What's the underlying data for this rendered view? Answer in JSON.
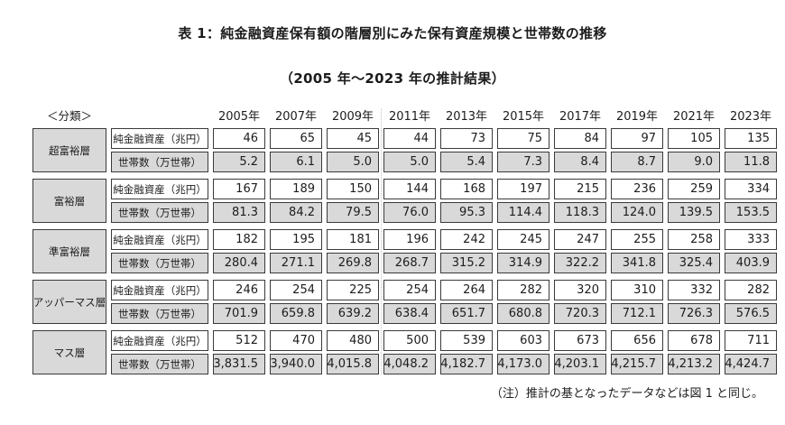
{
  "title": "表 1：純金融資産保有額の階層別にみた保有資産規模と世帯数の推移",
  "subtitle": "（2005 年～2023 年の推計結果）",
  "note": "（注）推計の基となったデータなどは図 1 と同じ。",
  "colors": {
    "cell_gray": "#d9d9d9",
    "border": "#3a3a3a",
    "background": "#ffffff"
  },
  "table": {
    "classification_label": "＜分類＞",
    "years": [
      "2005年",
      "2007年",
      "2009年",
      "2011年",
      "2013年",
      "2015年",
      "2017年",
      "2019年",
      "2021年",
      "2023年"
    ],
    "row_labels": {
      "assets": "純金融資産（兆円）",
      "households": "世帯数（万世帯）"
    },
    "tiers": [
      {
        "name": "超富裕層",
        "assets": [
          "46",
          "65",
          "45",
          "44",
          "73",
          "75",
          "84",
          "97",
          "105",
          "135"
        ],
        "households": [
          "5.2",
          "6.1",
          "5.0",
          "5.0",
          "5.4",
          "7.3",
          "8.4",
          "8.7",
          "9.0",
          "11.8"
        ]
      },
      {
        "name": "富裕層",
        "assets": [
          "167",
          "189",
          "150",
          "144",
          "168",
          "197",
          "215",
          "236",
          "259",
          "334"
        ],
        "households": [
          "81.3",
          "84.2",
          "79.5",
          "76.0",
          "95.3",
          "114.4",
          "118.3",
          "124.0",
          "139.5",
          "153.5"
        ]
      },
      {
        "name": "準富裕層",
        "assets": [
          "182",
          "195",
          "181",
          "196",
          "242",
          "245",
          "247",
          "255",
          "258",
          "333"
        ],
        "households": [
          "280.4",
          "271.1",
          "269.8",
          "268.7",
          "315.2",
          "314.9",
          "322.2",
          "341.8",
          "325.4",
          "403.9"
        ]
      },
      {
        "name": "アッパーマス層",
        "assets": [
          "246",
          "254",
          "225",
          "254",
          "264",
          "282",
          "320",
          "310",
          "332",
          "282"
        ],
        "households": [
          "701.9",
          "659.8",
          "639.2",
          "638.4",
          "651.7",
          "680.8",
          "720.3",
          "712.1",
          "726.3",
          "576.5"
        ]
      },
      {
        "name": "マス層",
        "assets": [
          "512",
          "470",
          "480",
          "500",
          "539",
          "603",
          "673",
          "656",
          "678",
          "711"
        ],
        "households": [
          "3,831.5",
          "3,940.0",
          "4,015.8",
          "4,048.2",
          "4,182.7",
          "4,173.0",
          "4,203.1",
          "4,215.7",
          "4,213.2",
          "4,424.7"
        ]
      }
    ]
  }
}
